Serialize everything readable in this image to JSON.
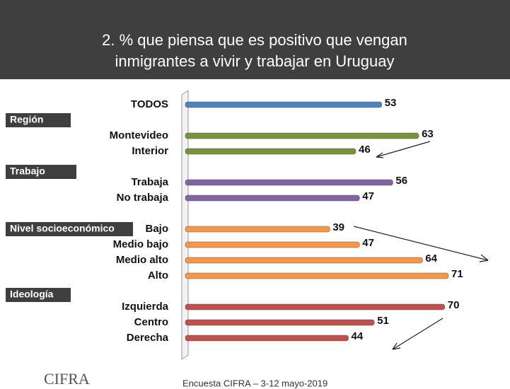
{
  "chart_data": {
    "type": "bar",
    "title": [
      "2. % que piensa que es positivo que vengan",
      "inmigrantes a vivir y trabajar en Uruguay"
    ],
    "groups": [
      {
        "categories": [
          "TODOS"
        ],
        "values": [
          53
        ],
        "color": "#4f81bd"
      },
      {
        "name": "Región",
        "categories": [
          "Montevideo",
          "Interior"
        ],
        "values": [
          63,
          46
        ],
        "color": "#77933c"
      },
      {
        "name": "Trabajo",
        "categories": [
          "Trabaja",
          "No trabaja"
        ],
        "values": [
          56,
          47
        ],
        "color": "#8064a2"
      },
      {
        "name": "Nivel socioeconómico",
        "categories": [
          "Bajo",
          "Medio bajo",
          "Medio alto",
          "Alto"
        ],
        "values": [
          39,
          47,
          64,
          71
        ],
        "color": "#f79646"
      },
      {
        "name": "Ideología",
        "categories": [
          "Izquierda",
          "Centro",
          "Derecha"
        ],
        "values": [
          70,
          51,
          44
        ],
        "color": "#c0504d"
      }
    ],
    "logo": "CIFRA",
    "source": "Encuesta CIFRA – 3-12 mayo-2019"
  }
}
